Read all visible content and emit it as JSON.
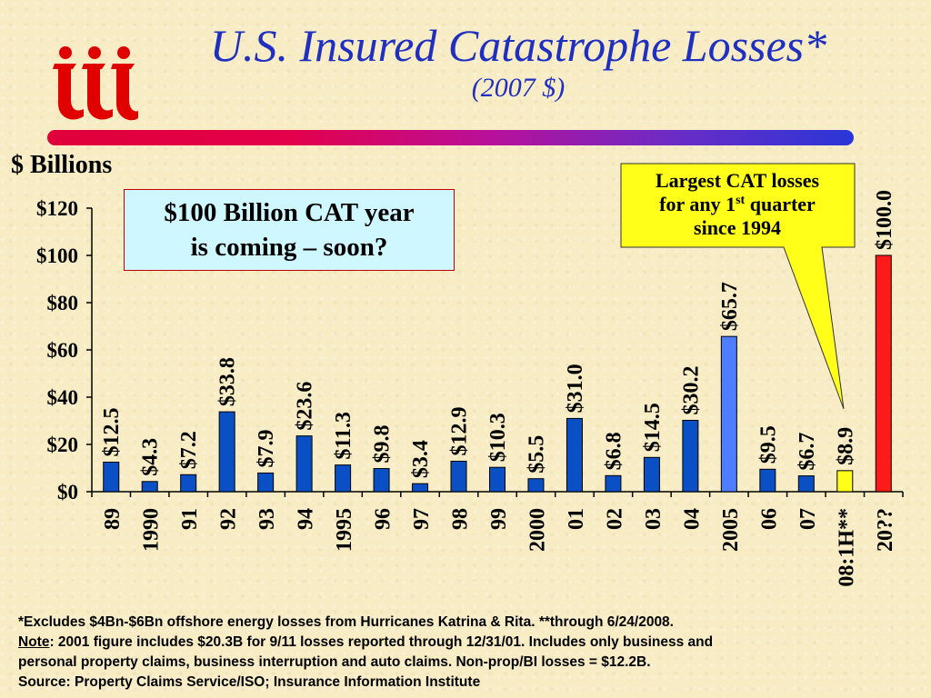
{
  "title": "U.S. Insured Catastrophe Losses*",
  "subtitle": "(2007 $)",
  "units_label": "$ Billions",
  "callout_box": {
    "line1": "$100 Billion CAT year",
    "line2": "is coming – soon?"
  },
  "callout_bubble": {
    "line1": "Largest CAT losses",
    "line2_pre": "for any 1",
    "line2_sup": "st",
    "line2_post": " quarter",
    "line3": "since 1994"
  },
  "colors": {
    "title": "#1f2fc0",
    "bar_default": "#0a4fc4",
    "bar_2005": "#4f7dff",
    "bar_2008": "#ffff1a",
    "bar_20xx": "#ff1a1a",
    "callout_bubble": "#ffff1a",
    "callout_box": "#cff7ff",
    "logo": "#e00000"
  },
  "chart_data": {
    "type": "bar",
    "categories": [
      "89",
      "1990",
      "91",
      "92",
      "93",
      "94",
      "1995",
      "96",
      "97",
      "98",
      "99",
      "2000",
      "01",
      "02",
      "03",
      "04",
      "2005",
      "06",
      "07",
      "08:1H**",
      "20??"
    ],
    "values": [
      12.5,
      4.3,
      7.2,
      33.8,
      7.9,
      23.6,
      11.3,
      9.8,
      3.4,
      12.9,
      10.3,
      5.5,
      31.0,
      6.8,
      14.5,
      30.2,
      65.7,
      9.5,
      6.7,
      8.9,
      100.0
    ],
    "data_labels": [
      "$12.5",
      "$4.3",
      "$7.2",
      "$33.8",
      "$7.9",
      "$23.6",
      "$11.3",
      "$9.8",
      "$3.4",
      "$12.9",
      "$10.3",
      "$5.5",
      "$31.0",
      "$6.8",
      "$14.5",
      "$30.2",
      "$65.7",
      "$9.5",
      "$6.7",
      "$8.9",
      "$100.0"
    ],
    "bar_colors": [
      "#0a4fc4",
      "#0a4fc4",
      "#0a4fc4",
      "#0a4fc4",
      "#0a4fc4",
      "#0a4fc4",
      "#0a4fc4",
      "#0a4fc4",
      "#0a4fc4",
      "#0a4fc4",
      "#0a4fc4",
      "#0a4fc4",
      "#0a4fc4",
      "#0a4fc4",
      "#0a4fc4",
      "#0a4fc4",
      "#4f7dff",
      "#0a4fc4",
      "#0a4fc4",
      "#ffff1a",
      "#ff1a1a"
    ],
    "yticks": [
      "$0",
      "$20",
      "$40",
      "$60",
      "$80",
      "$100",
      "$120"
    ],
    "ytick_values": [
      0,
      20,
      40,
      60,
      80,
      100,
      120
    ],
    "ylim": [
      0,
      120
    ],
    "grid": false,
    "xlabel": "",
    "ylabel": "$ Billions"
  },
  "footnotes": {
    "line1": "*Excludes $4Bn-$6Bn offshore energy losses from Hurricanes Katrina & Rita. **through 6/24/2008.",
    "note_word": "Note",
    "line2_rest": ": 2001 figure includes $20.3B for 9/11 losses reported through 12/31/01.  Includes only business and",
    "line3": "personal property claims, business interruption and auto claims.  Non-prop/BI losses = $12.2B.",
    "line4": "Source:  Property Claims Service/ISO; Insurance Information Institute"
  }
}
